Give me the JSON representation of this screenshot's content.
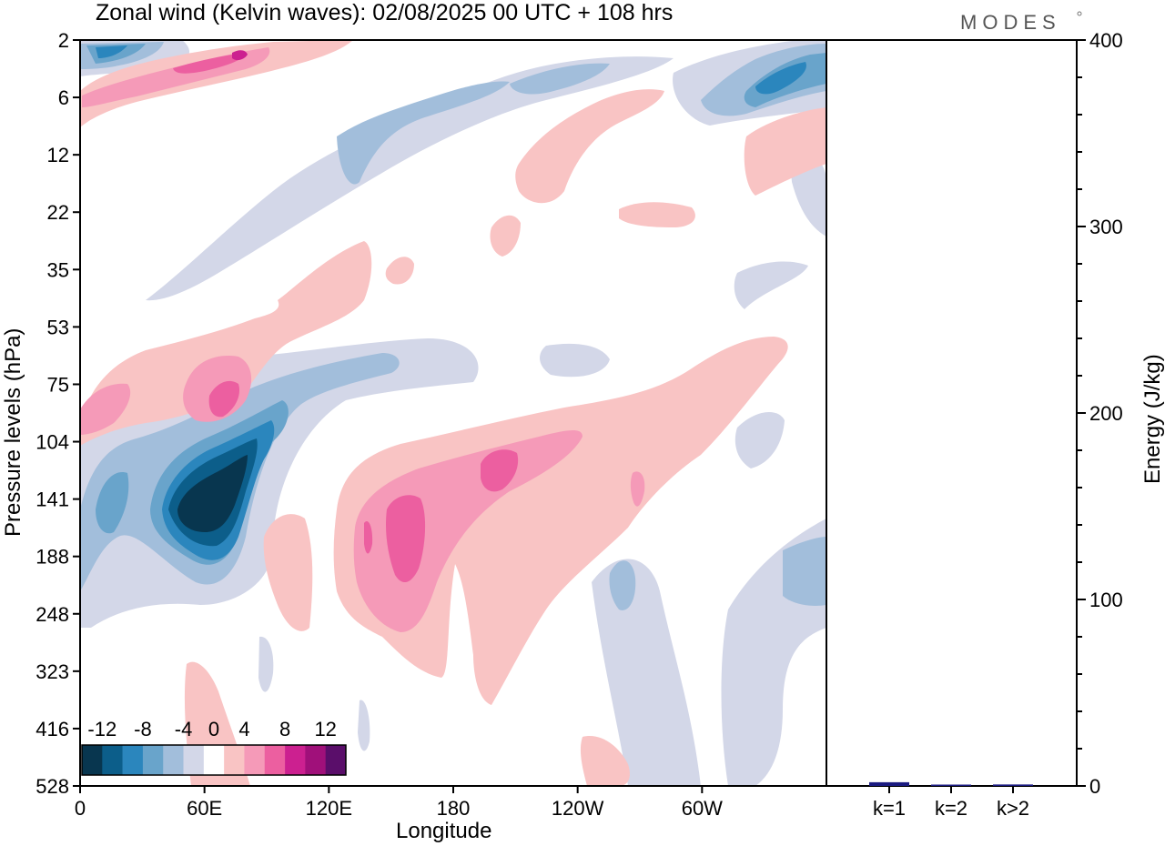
{
  "brand": "MODES",
  "chart_data": [
    {
      "type": "heatmap",
      "title": "Zonal wind (Kelvin waves):  02/08/2025  00 UTC  + 108 hrs",
      "xlabel": "Longitude",
      "ylabel": "Pressure levels (hPa)",
      "x_tick_labels": [
        "0",
        "60E",
        "120E",
        "180",
        "120W",
        "60W"
      ],
      "x_tick_degrees": [
        0,
        60,
        120,
        180,
        240,
        300
      ],
      "xlim_degrees": [
        0,
        360
      ],
      "y_tick_labels": [
        "2",
        "6",
        "12",
        "22",
        "35",
        "53",
        "75",
        "104",
        "141",
        "188",
        "248",
        "323",
        "416",
        "528"
      ],
      "colorbar": {
        "tick_labels": [
          "-12",
          "-8",
          "-4",
          "0",
          "4",
          "8",
          "12"
        ],
        "levels": [
          -14,
          -12,
          -10,
          -8,
          -6,
          -4,
          -2,
          2,
          4,
          6,
          8,
          10,
          12,
          14
        ],
        "colors": [
          "#08364f",
          "#0c5e8a",
          "#2b86bd",
          "#69a4cb",
          "#a2bedb",
          "#d3d7e8",
          "#ffffff",
          "#f9c4c4",
          "#f59ab8",
          "#ec5fa0",
          "#cc2090",
          "#a0107a",
          "#5a0e6a"
        ]
      },
      "features": [
        {
          "name": "easterly-max-upper-troposphere",
          "sign": "negative",
          "lon_deg": 55,
          "pressure_hPa": 141,
          "peak_ms": -14
        },
        {
          "name": "westerly-max-central-pacific",
          "sign": "positive",
          "lon_deg": 150,
          "pressure_hPa": 150,
          "peak_ms": 8
        },
        {
          "name": "westerly-max-dateline",
          "sign": "positive",
          "lon_deg": 200,
          "pressure_hPa": 118,
          "peak_ms": 8
        },
        {
          "name": "westerly-core-stratosphere",
          "sign": "positive",
          "lon_deg": 65,
          "pressure_hPa": 80,
          "peak_ms": 8
        },
        {
          "name": "easterly-upper-stratosphere-west",
          "sign": "negative",
          "lon_deg": 10,
          "pressure_hPa": 3,
          "peak_ms": -10
        },
        {
          "name": "easterly-upper-stratosphere-east",
          "sign": "negative",
          "lon_deg": 330,
          "pressure_hPa": 4,
          "peak_ms": -10
        }
      ]
    },
    {
      "type": "bar",
      "categories": [
        "k=1",
        "k=2",
        "k>2"
      ],
      "values": [
        2,
        0.5,
        0.8
      ],
      "ylabel": "Energy (J/kg)",
      "ylim": [
        0,
        400
      ],
      "y_ticks": [
        0,
        100,
        200,
        300,
        400
      ],
      "bar_color": "#1a1a80"
    }
  ]
}
